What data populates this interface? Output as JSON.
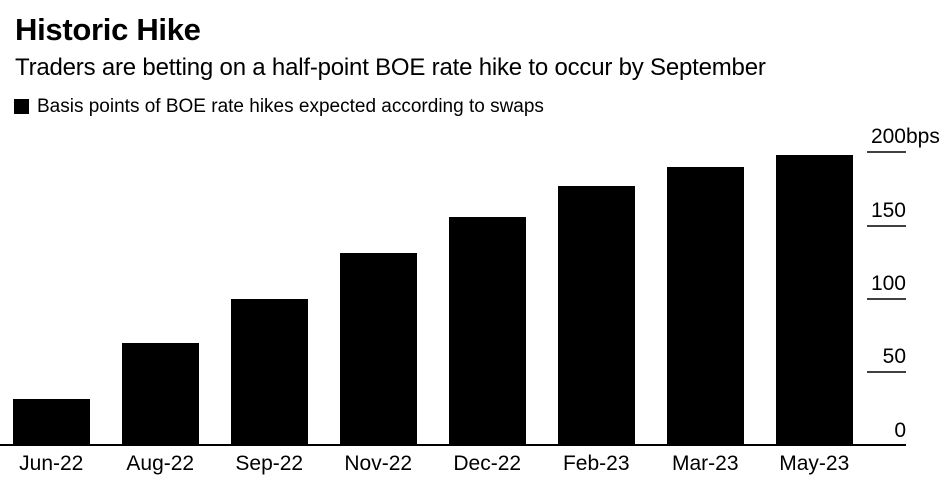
{
  "header": {
    "title": "Historic Hike",
    "subtitle": "Traders are betting on a half-point BOE rate hike to occur by September"
  },
  "legend": {
    "swatch_icon": "filled-square",
    "swatch_color": "#000000",
    "label": "Basis points of BOE rate hikes expected according to swaps"
  },
  "chart_data": {
    "type": "bar",
    "title": "Historic Hike",
    "subtitle": "Traders are betting on a half-point BOE rate hike to occur by September",
    "series_name": "Basis points of BOE rate hikes expected according to swaps",
    "categories": [
      "Jun-22",
      "Aug-22",
      "Sep-22",
      "Nov-22",
      "Dec-22",
      "Feb-23",
      "Mar-23",
      "May-23"
    ],
    "values": [
      32,
      70,
      100,
      131,
      156,
      177,
      190,
      198
    ],
    "unit": "bps",
    "xlabel": "",
    "ylabel": "",
    "ylim": [
      0,
      200
    ],
    "yticks": [
      0,
      50,
      100,
      150,
      200
    ],
    "ytick_labels": [
      "0",
      "50",
      "100",
      "150",
      "200bps"
    ],
    "axis_side": "right",
    "grid": false,
    "legend_position": "top-left",
    "bar_color": "#000000",
    "background_color": "#ffffff",
    "tick_color": "#404040"
  },
  "colors": {
    "background": "#ffffff",
    "bar": "#000000",
    "text": "#000000",
    "tick": "#404040",
    "axis_line": "#000000"
  }
}
